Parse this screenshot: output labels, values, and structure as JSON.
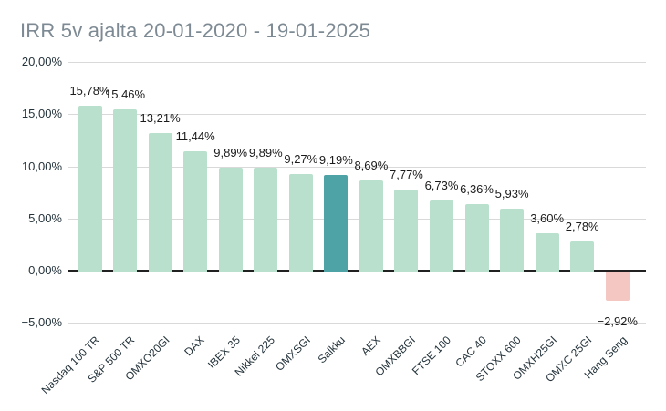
{
  "title": "IRR 5v ajalta 20-01-2020 - 19-01-2025",
  "chart_data": {
    "type": "bar",
    "title": "IRR 5v ajalta 20-01-2020 - 19-01-2025",
    "categories": [
      "Nasdaq 100 TR",
      "S&P 500 TR",
      "OMXO20GI",
      "DAX",
      "IBEX 35",
      "Nikkei 225",
      "OMXSGI",
      "Salkku",
      "AEX",
      "OMXBBGI",
      "FTSE 100",
      "CAC 40",
      "STOXX 600",
      "OMXH25GI",
      "OMXC 25GI",
      "Hang Seng"
    ],
    "values": [
      15.78,
      15.46,
      13.21,
      11.44,
      9.89,
      9.89,
      9.27,
      9.19,
      8.69,
      7.77,
      6.73,
      6.36,
      5.93,
      3.6,
      2.78,
      -2.92
    ],
    "value_labels": [
      "15,78%",
      "15,46%",
      "13,21%",
      "11,44%",
      "9,89%",
      "9,89%",
      "9,27%",
      "9,19%",
      "8,69%",
      "7,77%",
      "6,73%",
      "6,36%",
      "5,93%",
      "3,60%",
      "2,78%",
      "−2,92%"
    ],
    "highlight_category": "Salkku",
    "highlight_index": 7,
    "ylim": [
      -5,
      20
    ],
    "yticks": [
      {
        "value": 20,
        "label": "20,00%"
      },
      {
        "value": 15,
        "label": "15,00%"
      },
      {
        "value": 10,
        "label": "10,00%"
      },
      {
        "value": 5,
        "label": "5,00%"
      },
      {
        "value": 0,
        "label": "0,00%"
      },
      {
        "value": -5,
        "label": "−5,00%"
      }
    ],
    "grid": true,
    "legend": "none",
    "xlabel": "",
    "ylabel": "",
    "colors": {
      "bar": "#b9e0cc",
      "highlight": "#4da3a6",
      "negative": "#f4c7c3",
      "gridline": "#d9d9d9",
      "zero_line": "#212121",
      "title": "#7d8a93",
      "axis_label": "#24333b",
      "data_label": "#1b1b1b",
      "background": "#ffffff"
    }
  }
}
